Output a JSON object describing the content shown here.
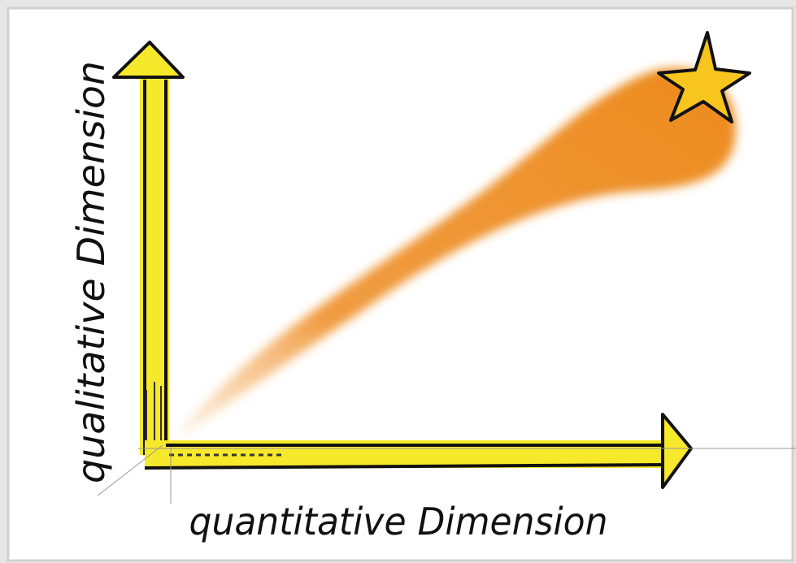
{
  "axes": {
    "y_label": "qualitative Dimension",
    "x_label": "quantitative Dimension"
  }
}
